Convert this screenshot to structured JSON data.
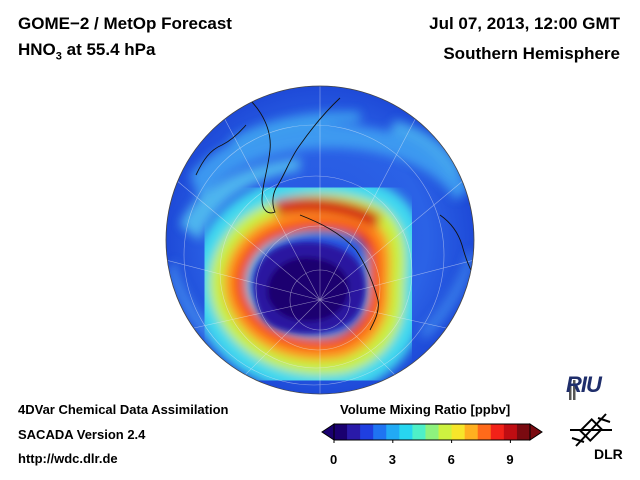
{
  "header": {
    "title_line1": "GOME−2 / MetOp Forecast",
    "title_line2_species": "HNO",
    "title_line2_sub": "3",
    "title_line2_rest": " at 55.4 hPa",
    "date": "Jul 07, 2013, 12:00 GMT",
    "region": "Southern Hemisphere"
  },
  "footer": {
    "line1": "4DVar Chemical Data Assimilation",
    "line2": "SACADA Version 2.4",
    "line3": "http://wdc.dlr.de"
  },
  "colorbar": {
    "label": "Volume Mixing Ratio [ppbv]",
    "ticks": [
      "0",
      "3",
      "6",
      "9"
    ],
    "min": 0,
    "max": 10,
    "colors": [
      "#1a0070",
      "#2a1aa8",
      "#1f3fe0",
      "#1f74f2",
      "#22aaf5",
      "#27d6f0",
      "#4ef0c8",
      "#8ef27e",
      "#cdf240",
      "#f7e62a",
      "#ffb020",
      "#ff6a1a",
      "#f22218",
      "#c00d12",
      "#7a0a10"
    ]
  },
  "map": {
    "projection": "polar orthographic, south pole centered",
    "field_description": "low values in polar vortex core, ring of high values around vortex",
    "ocean_background_color": "#2a58e0"
  },
  "logos": {
    "riu": "RIU",
    "dlr": "DLR"
  }
}
